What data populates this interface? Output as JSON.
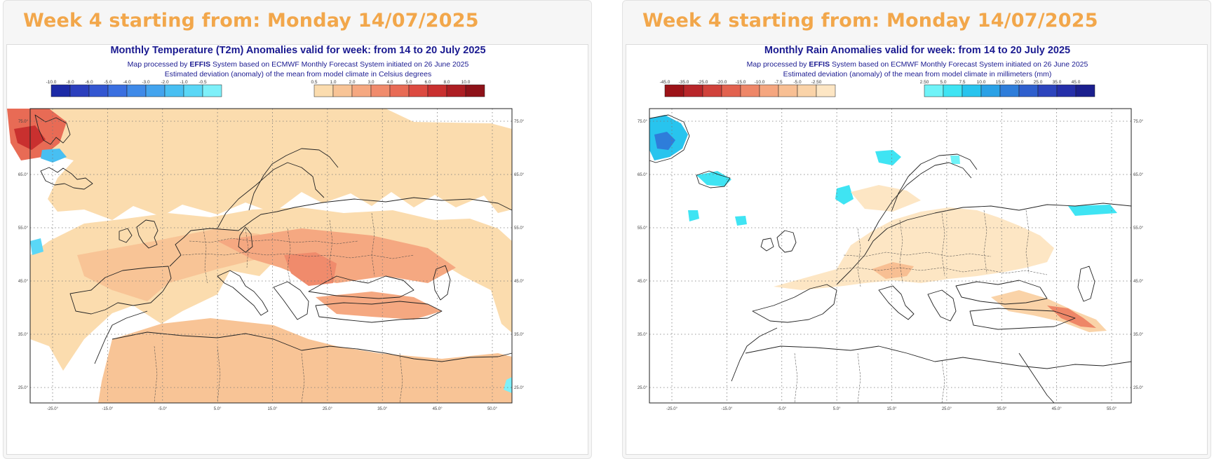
{
  "panels": [
    {
      "header": "Week 4 starting from: Monday 14/07/2025",
      "title": "Monthly Temperature (T2m) Anomalies valid for week: from 14 to 20 July 2025",
      "subtitle_prefix": "Map processed by ",
      "subtitle_brand": "EFFIS",
      "subtitle_suffix": " System based on ECMWF Monthly Forecast System initiated on 26 June 2025",
      "description": "Estimated deviation (anomaly) of the mean from model climate in Celsius degrees",
      "legend_negative": {
        "labels": [
          "-10.0",
          "-8.0",
          "-6.0",
          "-5.0",
          "-4.0",
          "-3.0",
          "-2.0",
          "-1.0",
          "-0.5"
        ],
        "colors": [
          "#1c2aa6",
          "#2b3fbd",
          "#3356d1",
          "#3a6fe0",
          "#3f8ae8",
          "#43a4ee",
          "#48bff2",
          "#5ad7f6",
          "#7ef0f9"
        ]
      },
      "legend_positive": {
        "labels": [
          "0.5",
          "1.0",
          "2.0",
          "3.0",
          "4.0",
          "5.0",
          "6.0",
          "8.0",
          "10.0"
        ],
        "colors": [
          "#fbdcae",
          "#f8c496",
          "#f5a881",
          "#f08b6c",
          "#e86b55",
          "#dc4a40",
          "#c9302f",
          "#ad1e23",
          "#8e1219"
        ]
      },
      "x_ticks": [
        "-25.0°",
        "-15.0°",
        "-5.0°",
        "5.0°",
        "15.0°",
        "25.0°",
        "35.0°",
        "45.0°",
        "50.0°"
      ],
      "y_ticks": [
        "75.0°",
        "65.0°",
        "55.0°",
        "45.0°",
        "35.0°",
        "25.0°"
      ]
    },
    {
      "header": "Week 4 starting from: Monday 14/07/2025",
      "title": "Monthly Rain Anomalies valid for week: from 14 to 20 July 2025",
      "subtitle_prefix": "Map processed by ",
      "subtitle_brand": "EFFIS",
      "subtitle_suffix": " System based on ECMWF Monthly Forecast System initiated on 26 June 2025",
      "description": "Estimated deviation (anomaly) of the mean from model climate in millimeters (mm)",
      "legend_negative": {
        "labels": [
          "-45.0",
          "-35.0",
          "-25.0",
          "-20.0",
          "-15.0",
          "-10.0",
          "-7.5",
          "-5.0",
          "-2.50"
        ],
        "colors": [
          "#9c1318",
          "#b8262a",
          "#d0423b",
          "#e2624f",
          "#ee8667",
          "#f5a67f",
          "#f8bf93",
          "#fad3a8",
          "#fde6c4"
        ]
      },
      "legend_positive": {
        "labels": [
          "2.50",
          "5.0",
          "7.5",
          "10.0",
          "15.0",
          "20.0",
          "25.0",
          "35.0",
          "45.0"
        ],
        "colors": [
          "#6ff3f8",
          "#3fe4f3",
          "#28c4ee",
          "#2aa1e6",
          "#2e7dda",
          "#2f5fcd",
          "#2c44bd",
          "#252fa9",
          "#1b1f8e"
        ]
      },
      "x_ticks": [
        "-25.0°",
        "-15.0°",
        "-5.0°",
        "5.0°",
        "15.0°",
        "25.0°",
        "35.0°",
        "45.0°",
        "55.0°"
      ],
      "y_ticks": [
        "75.0°",
        "65.0°",
        "55.0°",
        "45.0°",
        "35.0°",
        "25.0°"
      ]
    }
  ]
}
